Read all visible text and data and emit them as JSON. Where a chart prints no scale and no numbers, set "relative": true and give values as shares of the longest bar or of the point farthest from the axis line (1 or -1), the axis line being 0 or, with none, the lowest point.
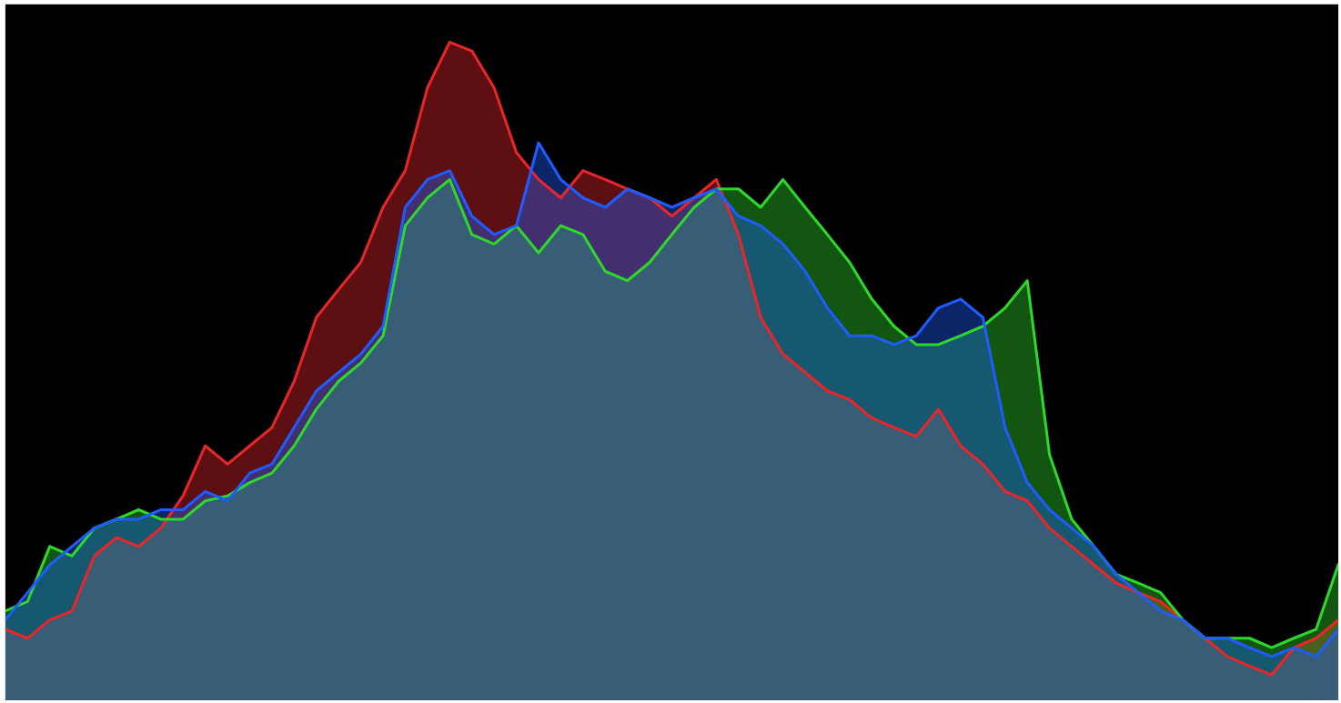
{
  "chart_data": {
    "type": "area",
    "relative": true,
    "grid": false,
    "legend": false,
    "categories": [
      null,
      null,
      null,
      null,
      null,
      null,
      null,
      null,
      null,
      null,
      null,
      null,
      null,
      null,
      null,
      null,
      null,
      null,
      null,
      null,
      null,
      null,
      null,
      null,
      null,
      null,
      null,
      null,
      null,
      null,
      null,
      null,
      null,
      null,
      null,
      null,
      null,
      null,
      null,
      null,
      null,
      null,
      null,
      null,
      null,
      null,
      null,
      null,
      null,
      null,
      null,
      null,
      null,
      null,
      null,
      null,
      null,
      null,
      null,
      null,
      null
    ],
    "series": [
      {
        "color": "#e8262a",
        "values": [
          0.072,
          0.058,
          0.087,
          0.101,
          0.188,
          0.217,
          0.203,
          0.232,
          0.283,
          0.362,
          0.333,
          0.362,
          0.391,
          0.464,
          0.565,
          0.609,
          0.652,
          0.739,
          0.797,
          0.928,
          1,
          0.986,
          0.928,
          0.826,
          0.783,
          0.754,
          0.797,
          0.783,
          0.768,
          0.754,
          0.725,
          0.754,
          0.783,
          0.696,
          0.565,
          0.507,
          0.478,
          0.449,
          0.435,
          0.406,
          0.391,
          0.377,
          0.42,
          0.362,
          0.333,
          0.29,
          0.275,
          0.232,
          0.203,
          0.174,
          0.145,
          0.13,
          0.116,
          0.087,
          0.058,
          0.029,
          0.014,
          0,
          0.043,
          0.058,
          0.087
        ]
      },
      {
        "color": "#2ed82a",
        "values": [
          0.101,
          0.116,
          0.203,
          0.188,
          0.232,
          0.246,
          0.261,
          0.246,
          0.246,
          0.275,
          0.283,
          0.304,
          0.319,
          0.362,
          0.42,
          0.464,
          0.493,
          0.536,
          0.71,
          0.754,
          0.783,
          0.696,
          0.681,
          0.71,
          0.667,
          0.71,
          0.696,
          0.638,
          0.623,
          0.652,
          0.696,
          0.739,
          0.768,
          0.768,
          0.739,
          0.783,
          0.739,
          0.696,
          0.652,
          0.594,
          0.551,
          0.522,
          0.522,
          0.536,
          0.551,
          0.58,
          0.623,
          0.348,
          0.246,
          0.203,
          0.159,
          0.145,
          0.13,
          0.087,
          0.058,
          0.058,
          0.058,
          0.043,
          0.058,
          0.072,
          0.174
        ]
      },
      {
        "color": "#1f5cff",
        "values": [
          0.087,
          0.13,
          0.174,
          0.203,
          0.232,
          0.246,
          0.246,
          0.261,
          0.261,
          0.29,
          0.275,
          0.319,
          0.333,
          0.391,
          0.449,
          0.478,
          0.507,
          0.551,
          0.739,
          0.783,
          0.797,
          0.725,
          0.696,
          0.71,
          0.841,
          0.783,
          0.754,
          0.739,
          0.768,
          0.754,
          0.739,
          0.754,
          0.768,
          0.725,
          0.71,
          0.681,
          0.638,
          0.58,
          0.536,
          0.536,
          0.522,
          0.536,
          0.58,
          0.594,
          0.565,
          0.391,
          0.304,
          0.261,
          0.232,
          0.203,
          0.159,
          0.13,
          0.101,
          0.087,
          0.058,
          0.058,
          0.043,
          0.029,
          0.043,
          0.029,
          0.072
        ]
      }
    ]
  }
}
